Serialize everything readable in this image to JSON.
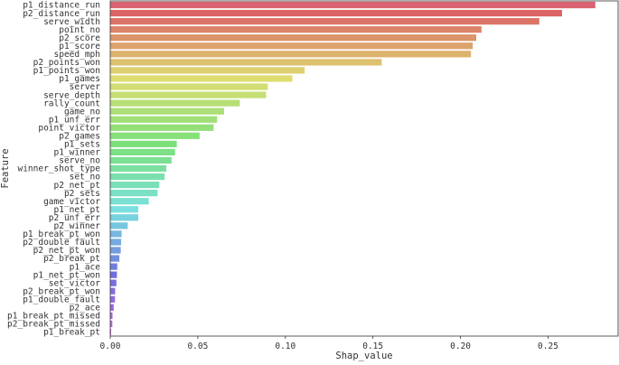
{
  "chart_data": {
    "type": "bar",
    "orientation": "horizontal",
    "title": "",
    "xlabel": "Shap_value",
    "ylabel": "Feature",
    "xlim": [
      0.0,
      0.29
    ],
    "xticks": [
      0.0,
      0.05,
      0.1,
      0.15,
      0.2,
      0.25
    ],
    "xtick_labels": [
      "0.00",
      "0.05",
      "0.10",
      "0.15",
      "0.20",
      "0.25"
    ],
    "grid": false,
    "legend": "none",
    "palette": "husl-gradient",
    "categories": [
      "p1_distance_run",
      "p2_distance_run",
      "serve_width",
      "point_no",
      "p2_score",
      "p1_score",
      "speed_mph",
      "p2_points_won",
      "p1_points_won",
      "p1_games",
      "server",
      "serve_depth",
      "rally_count",
      "game_no",
      "p1_unf_err",
      "point_victor",
      "p2_games",
      "p1_sets",
      "p1_winner",
      "serve_no",
      "winner_shot_type",
      "set_no",
      "p2_net_pt",
      "p2_sets",
      "game_victor",
      "p1_net_pt",
      "p2_unf_err",
      "p2_winner",
      "p1_break_pt_won",
      "p2_double_fault",
      "p2_net_pt_won",
      "p2_break_pt",
      "p1_ace",
      "p1_net_pt_won",
      "set_victor",
      "p2_break_pt_won",
      "p1_double_fault",
      "p2_ace",
      "p1_break_pt_missed",
      "p2_break_pt_missed",
      "p1_break_pt"
    ],
    "values": [
      0.277,
      0.258,
      0.245,
      0.212,
      0.209,
      0.207,
      0.206,
      0.155,
      0.111,
      0.104,
      0.09,
      0.089,
      0.074,
      0.065,
      0.061,
      0.059,
      0.051,
      0.038,
      0.037,
      0.035,
      0.032,
      0.031,
      0.028,
      0.027,
      0.022,
      0.016,
      0.016,
      0.01,
      0.0065,
      0.0062,
      0.006,
      0.0052,
      0.004,
      0.0038,
      0.0035,
      0.0028,
      0.0027,
      0.002,
      0.0013,
      0.0012,
      0.0005
    ]
  }
}
